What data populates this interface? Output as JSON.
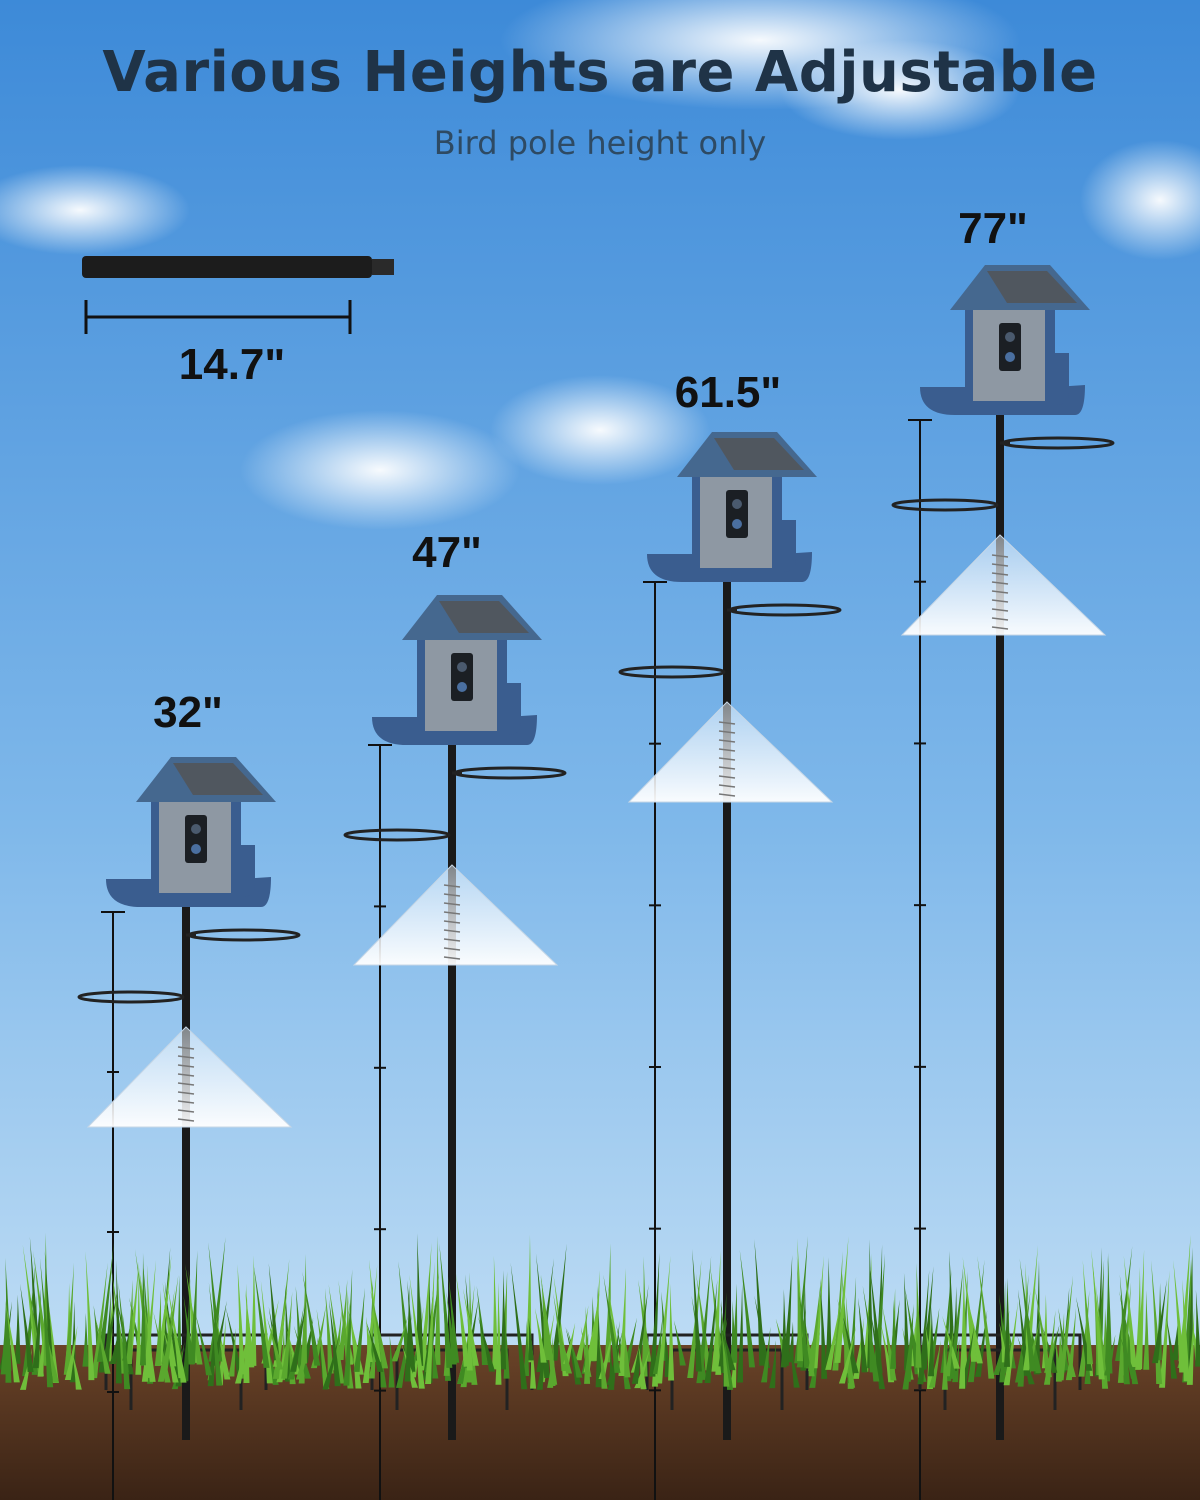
{
  "header": {
    "title": "Various Heights are Adjustable",
    "subtitle": "Bird pole height only"
  },
  "pole_segment": {
    "length_label": "14.7\""
  },
  "configurations": [
    {
      "height_label": "32\"",
      "segments": 4
    },
    {
      "height_label": "47\"",
      "segments": 5
    },
    {
      "height_label": "61.5\"",
      "segments": 6
    },
    {
      "height_label": "77\"",
      "segments": 7
    }
  ],
  "colors": {
    "sky_top": "#3d8ad8",
    "sky_bottom": "#cfe6f7",
    "feeder_blue": "#3a5d8f",
    "pole": "#1a1a1a",
    "grass": "#4f9a2a",
    "soil": "#4a2d1c"
  }
}
